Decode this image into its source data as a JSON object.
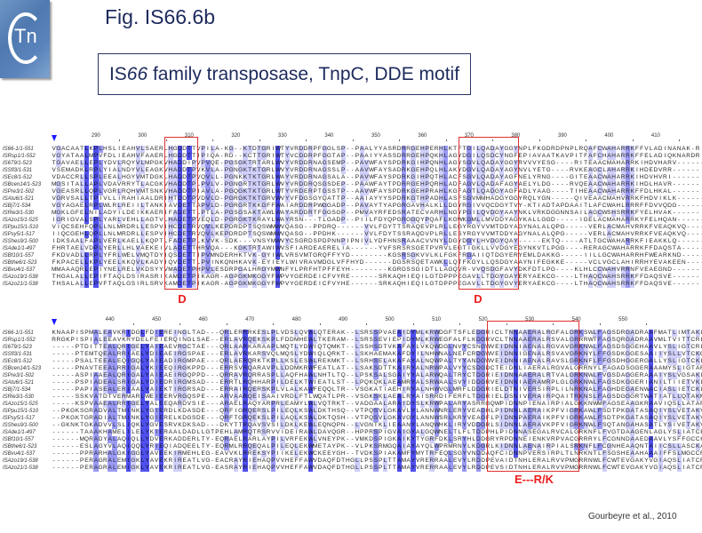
{
  "logo": {
    "text": "Tn",
    "icon": "cntn-logo"
  },
  "figure_label": "Fig. IS66.6b",
  "title": {
    "prefix": "IS",
    "italic": "66",
    "rest": " family transposase, TnpC, DDE motif"
  },
  "colors": {
    "high": "#5050f0",
    "mid": "#9a9af6",
    "low": "#d0d0fb",
    "annotation": "#ee1c1c"
  },
  "blocks": [
    {
      "ruler": [
        290,
        300,
        310,
        320,
        330,
        340,
        350,
        360,
        370,
        380,
        390,
        400,
        410
      ],
      "annotations": [
        "D",
        "D"
      ],
      "rows": [
        {
          "name": "IS66-1/1-551",
          "seq": "VGACAATLKPLHSLIEAHVLSAERLHGDDTTVPILA-KG--KTDTGRIWTYVRDDRPFGGLSP--PAALYYASRDRRGEHPERHLKTFTGILQADAYGGYNPLFKGDRDPNPLRQAFCWAHARRKFFVLADINANAK-R"
        },
        {
          "name": "ISRsp1/1-552",
          "seq": "VGYATAALMPVFDLIEAHVFAAERLHGDDTTIPIQA-RD--KCTTGRIWTYVCDDRPFGGTAP--PAAIYYASSDRRGEHPQKHLAGYDGILQSDCYNGFEPIAVAATKAVPITFAFCHAHARRKFFELADIQKNARDR"
        },
        {
          "name": "IS679/1-523",
          "seq": "TGAVAELLEPLYDVLRQYVLMPGKVHADDIPVPVQE-PGSGKTRTARLWVYVRDDRNAGSEMP--PAVWFAYSPDRKGIHPQNHLAGYSGVLQADAYGGYRVVVYESG----RITEAACMAHARRKIHDVHARV------"
        },
        {
          "name": "ISSfl3/1-531",
          "seq": "VSEMADKLRPLYIALNDYVLEAGKVHADDTPVKVLA-PGNGKTKTGRLWVYVRDDRNAGSSLP--AAVWFAYSADRKGEHPQLHLAKYDGVLQADAYAGYNVLYETG----RVKEAGCLAHARRKIHDEDVRR------"
        },
        {
          "name": "ISEc8/1-512",
          "seq": "VDACCRLLSPLEEALHGYVMTDGKLHADDTPVQVLL-PGNKKTKTGRLWAYVRDDRNAGSALA--PAVWFAYSPDRKGIHPQTHLACFSGVLQADAYAGFNELYRNG----GITEAACWAHARRKIHDVHVRI------"
        },
        {
          "name": "ISBcen14/1-523",
          "seq": "MGSITALLAPLVDAVRRYTLACGKVHADDTPLPVLV-PGNGRTKTGRLWVYVRDDRQSGSDEP--PAAWFAYTPDRRGEHPQRHLADFAGVLQADAFAGYAELYLDG----RVQEAACWAHARRKIHDLHAVR------"
        },
        {
          "name": "ISPre3/1-502",
          "seq": "VGEASRLLQPLVGRLRQHVMTSNKVHADDTPIAVLA-PGQGKTKTGRLWTYVRDERPTGSSTP--AAVWFAYSPDRKGEHPRAHLKGFAGTLQADGYAGFADLYAAG----TIHEAACWAHARRKFFDLHKAL------"
        },
        {
          "name": "ISAtu6/1-521",
          "seq": "VGRVSALLTPIVLLIRAHIAALDRIHTDDTPVDVLD-PGRGKTKTGRVWVYVFDGSGYQATTP--AAIAYYYSPDRKGTHPADHLASFSGVMMHADGYGGYRQLYGN-----QIVEAACMAHVRRKFHDVIKLK------"
        },
        {
          "name": "ISBj7/1-534",
          "seq": "VGYAGAELRPLWLRLREIILTANKIAVDETTAPVLD-PGRGRTKKGFFWAIARDDRPWGGADP--PAVAYTYAPGRGAVHALKLLDGYRGIVVQCDGYTVY-KTIADTAPDAAITLAFCWAHLRRRFFDVVQDG------"
        },
        {
          "name": "ISRle3/1-530",
          "seq": "MGKLGFELNILADYILDEIKKAERIFADETTLPTLA-PGSGSAKTAWLWAYARDDRTFGGSGP--PMVAYRFEDSRATECVARHLNGYPGILQVDGYAAYNKLVRKDGGNNSAILAGCWSHSRRKFYELHVAK------"
        },
        {
          "name": "ISAzo15/1-525",
          "seq": "IGRIGVALSPLYARLVEHLLAGTVLHADETPVEQLD-PGRGKTKRAYLWAYRSN---TLGADP--PIILFDYQPGRGGQYPQAFLKGWKGMLLMVDDYAGYKALLGGD-----IGELACMAHARRKYFELHQAN------"
        },
        {
          "name": "ISPpu15/1-510",
          "seq": "VIQCSEHFQPLLNLMRDRLLESPVIHCDETRVQVLKEPDRDPTSQSWMWVQASG--PPDRQ------VVLFDYTTSRAQEVPLRLLEGYRGYVVMTDDYAGYNALALQPG-----VERLACMAHVRRKFVEAQKVQ------"
        },
        {
          "name": "ISPsy5/1-517",
          "seq": "IIQCGEHLQPLLNLMRDRLLESPVIHCDETRVQVLKEPDRDPTSQSWMWVQASG--PPDHK------VVLFDYTSSRAQDVPLRLLESYRGYVVMTDDYAGYNALALQPG-----VERLACMAHVRRKFVEAQKVQ------"
        },
        {
          "name": "ISShes9/1-500",
          "seq": "IDKSAALFAPLVERLKAELLKQPTLFADETPLKVVK-SDK---VNSYMWVYCSGRDSPDPNNPIPNIVLYDFHNSRAAACVVNYLDGYDGYLHVDGYQAY-----EKTQ----ATLTGCWAHARRKFIEAKKLQ------"
        },
        {
          "name": "ISAde1/1-497",
          "seq": "FHRTAELVDPLYERLLHLVAEKEIVLADETTHRVQA---KGKTRTAWIWVSFIARDEAERELIA------YVFSRSRSGETPVRVLEGTIGKLLVVDGYEGYNKVTLPGG----RERAGCWAHARRKFFDAQSTA------"
        },
        {
          "name": "ISBf10/1-557",
          "seq": "FKDVADLLRPLYFRLWELVMQTDYIQSDETTIPVMNDERHKTVK-GYIWLVRSVMTGRQFFYYD--------KGSRSGKVVLKLFGKFRGAIIQTDGYERYEMLDAKKG-----IILLGCWAHARRHFWEARKND------"
        },
        {
          "name": "ISBthe6/1-523",
          "seq": "FKPACELLKPLYEELKKQVLKADYIQVDETTLPVINKQNHKAVK-EYIEYLWIVRAVMDGLVFFHYD------DGSRSQETAWKLLQTFKGYLLQSDGYAAYNIFEGKKE-----VCLVGCLAHIRRHYEVAKEEN------"
        },
        {
          "name": "ISBvu4/1-537",
          "seq": "MMAAAQRLEPIYNELRELVKDSYYVMADETPHPVLESDRPGALHRGYMWNFYLPRFHTPFFEYH--------KGRGSSGIDTLLAGQVR-VVQSDGFAVYDKFDTLPG----KLHLCCWAHVRRNFVEAEGND------"
        },
        {
          "name": "ISAzo19/1-538",
          "seq": "THGALALLEPIFTAQLDSIRASRIKAMDETPIKAGR-AGPGKMKGGYFWPVYGERDEICFVYRE------SRKAQHIEQILGTDPPPEGAVLLTDGYGAYERYAEKCG----LTHAQCWAHSRRKFFDAQSVE------"
        },
        {
          "name": "ISAzo21/1-538",
          "seq": "THSALALLEPVFTAQLGSIRLSRVKAMDETPIKAGR-AGPGKMKGGYFWPVYGERDEICFVYHE------SRKAQHIEQILGTDPPPEGAVLLTDGYGVYERYAEKCG----LTHAQCWAHSRRKFFDAQSVE------"
        }
      ]
    },
    {
      "ruler": [
        440,
        450,
        460,
        470,
        480,
        490,
        500,
        510,
        520,
        530,
        540,
        550
      ],
      "annotations": [
        "E---R/K"
      ],
      "rows": [
        {
          "name": "IS66-1/1-551",
          "seq": "KNAAPISPMALEAVKRIDGLFDIEREINGLTAD---QRLERRRKESLPLVDSLQVWLQTERAK--LSRSSPVAEAIDYMLKRWDGFTSFLEDGRICLTNNAAERALRGFALGRKSWLFAGSDRGADRAAFMATLIMTAKL"
        },
        {
          "name": "ISRsp1/1-552",
          "seq": "RRGKPISPIALEEAVKRYDELFEIERQINGLSAE--ERLAVRQEKSKPLFDDMHEWLTKERAM--LSRSSEVIEPIDYMLKRWEGFALFLKDGRVCLTNNAAERALRSVALGRRRWTFAGSQRGADRAAVMLTVITTCRL"
        },
        {
          "name": "IS679/1-523",
          "seq": "-----PTDITTEALQRIGELYAIEAEVRGCTAE---QRLAARKARAAPLMQTLYDWIQTQMKT--LSSHSDTVKAFAYLVKQWDGLNVYCSNGWVEIDNNIAENALRGVAVGRKNWLFAGSDSGGEHAAVLYSLIGTCRL"
        },
        {
          "name": "ISSfl3/1-531",
          "seq": "-----PTEMTQEALRRIAELYDIEAEIRGSPAE---ERLAVRKARSVQLMQSLYDWIQLQRKT--LSKHAEMAKAFDYILNHWNALNEFCRDGWVEIDNNIGENALRSVAVGRKNYLFFGSDKGGESAAIIYSLLVTCKQ"
        },
        {
          "name": "ISEc8/1-512",
          "seq": "-----PSALTEEALEQIGQLYAIEADIRGMPAE---QRLAERQRKTKPLLKSLESWLREKMKT--LSRHSELAKAFAYALNQWPALTYYANDGWVEIDNNIAENALRAVSLGRKNFLFFGSDHGGERGALLYSLIGTCKL"
        },
        {
          "name": "ISBcen14/1-523",
          "seq": "-----PNAVTEEALRRIGALYKIEEQIRGKPPD---ERRSVRQARAVPLLDDMKRWFEATLAT--LSAKSDTTKAIRYALNRWPALVYYCSDGDCTEIDNLIAERALRGVALGRRNYLFAGADSGGERAAAMYSLIGTARL"
        },
        {
          "name": "ISPre3/1-502",
          "seq": "-----ASPIAAEALQRIGALYAIEAEIRGQPPD---QRRAVRQRRASPLLAQFHAWLNHTLTQ--LPSKSALSGAIYYALARWQALTRYCTDGRIEIDNNAAERALRTVALGRKNWLFVGSDAGGERAAAIYSLVGSAKL"
        },
        {
          "name": "ISAtu6/1-521",
          "seq": "-----PSPIADEALSRIGALYDIEDRIRGMSAD---ERRTLRQHHARPILDELKTWIEATLST--LPQKQKLAEAMRYALSRWAALSVYIDDGRVEIDNNIAERAMRPLGLGRKNWLFAGSDKGGERIANILTIIETVKL"
        },
        {
          "name": "ISBj7/1-534",
          "seq": "-----PAPIASEALERIAALYAIEKTIRGRSAD---ERRAIRQERSKPLVLALKAWFEQQLTR--VSGKATIAEHIRYALNHWVGLMRFLDDGRIELDTNIVERSIRPLILNRKNALFAGHDEGAENWACIASLIETCKL"
        },
        {
          "name": "ISRle3/1-530",
          "seq": "-----SSKVATDTVERMARLWEIEERVRGQSPE---ARVAARQEISAAIVRDLFTLWQATLPR--VSGKSKLAEALRYAISRRDIFERFLTDGRIELDSNIVERAIRPQAITRKNSLFAGSDGGGRTWATIATLLQTAKM"
        },
        {
          "name": "ISAzo15/1-525",
          "seq": "-----KSPVAAEALRRIGELYALEEQARDVSIE---ARAELRAQYARPRLEAMYLWLVQTRKT--VADGAALARAIDYSLKRWPALARYASRRGQWPIDNNPIENAIRPIALGKKNWMFAGSEAAGKRAAVIQSLLATARA"
        },
        {
          "name": "ISPpu15/1-510",
          "seq": "--PKGKSGRADVALTMINKLYGIERDLKDASDE---QRFIGRQERSLPILEQLKSWLDKTHSQ--VTPQSVLGKAVLYLANNWNRLERYVEAGHLPIDNNLAERAIKPFVIGRKAWLFSDTPKGATASAQIYSLVETAKV"
        },
        {
          "name": "ISPsy5/1-517",
          "seq": "--PKGKTGRADIALTMINKLYGIERELKDGSDE---QRFTGRQEKSLPILAQLKSWLDKTQSH--VTPQSVLGKAVGYLANNWSRLKRYVEAGFLPIDNNPAERAIKPFVIGRKAWLFSDTPKGATASAQIYSLVETAKV"
        },
        {
          "name": "ISShes9/1-500",
          "seq": "--GKNKTGKADVVLSLIQKLYGVESRVKDKSAD---DKYTTRQAVSVSILDKLKEWLEQNQPN--LVGNTKLIEAANYLANQWHKLIRYVDDGRLSIDNNLAERAVKPFVIGRKNWLFSQTANGAHASATLYSIVETAKV"
        },
        {
          "name": "ISAde1/1-497",
          "seq": "------TAAAKHAMELILELYKIERAALDADLLGTPEHLAMRQTRSRVVIDEIRAWLDAVQGR--HPPRSPIGVAIGYALGQWNELTLFLTDDPHLPIDNNASEGALRVCALGRKNFLFVGTDAAGENLAGLYSLIATCEA"
        },
        {
          "name": "ISBf10/1-557",
          "seq": "------MQRADYALAQIQLLYDVERKADDERLTY-EQRAELRARLAYPILVRFEKWLVNEYPK--VMKDSPIGKAIKYTYGRFDKLSRYHLDDGRYRPDNNEIENKVRPVACGRRRYLFCGNNDAAEDAAVLYSFFGCCKA"
        },
        {
          "name": "ISBthe6/1-523",
          "seq": "------ESLAGYVLAQIQQLYRIEQIADQEELTY-EQRMLRRQEQALPILEQLEKWMETAYPK--VLPKSRMGQAIAYAYQLWPRMRNYLKDGRLKIDNNLAENAIRPIALSRKNFLFCGNHEAAQNTAIICSLLASCKA"
        },
        {
          "name": "ISBvu4/1-537",
          "seq": "------PPRARHALGKIGGLYAVEEKIRMEHLEG-EAVVKLRREKSYPIIKELEKWCKEEYGH--TVDKSPIAKAMFYMYTRFEQLSGYVNDDAQFCIDNNPVERSIRPLTLNRKNTLFSGSHEAAHAAAIFFSLMGCCRE"
        },
        {
          "name": "ISAzo19/1-538",
          "seq": "------PERAGRALEMIGKLYAVEKRIREATLVG-EACRAYRIEHAQPVVHEFFAWVDAQFDTHGLLPSSPLTTAMAYVRERRAALEVYLRDDPEVAIDTNHLERALRVVPMGRRNWLFCWTEVGAKYVGIAQSLIATCRL"
        },
        {
          "name": "ISAzo21/1-538",
          "seq": "------PERAGRALEMIGKLYAVEKRIREATLVG-EASRAYRIEHAQPVVHEFFAWVDAQFDTHGLLPSSPLTTAMAYVRERRAALEVYLRDDPEVSIDTNHLERALRVVPMGRRNWLFCWTEVGAKYVGIAQSLIATCRL"
        }
      ]
    }
  ],
  "citation": "Gourbeyre et al., 2010"
}
